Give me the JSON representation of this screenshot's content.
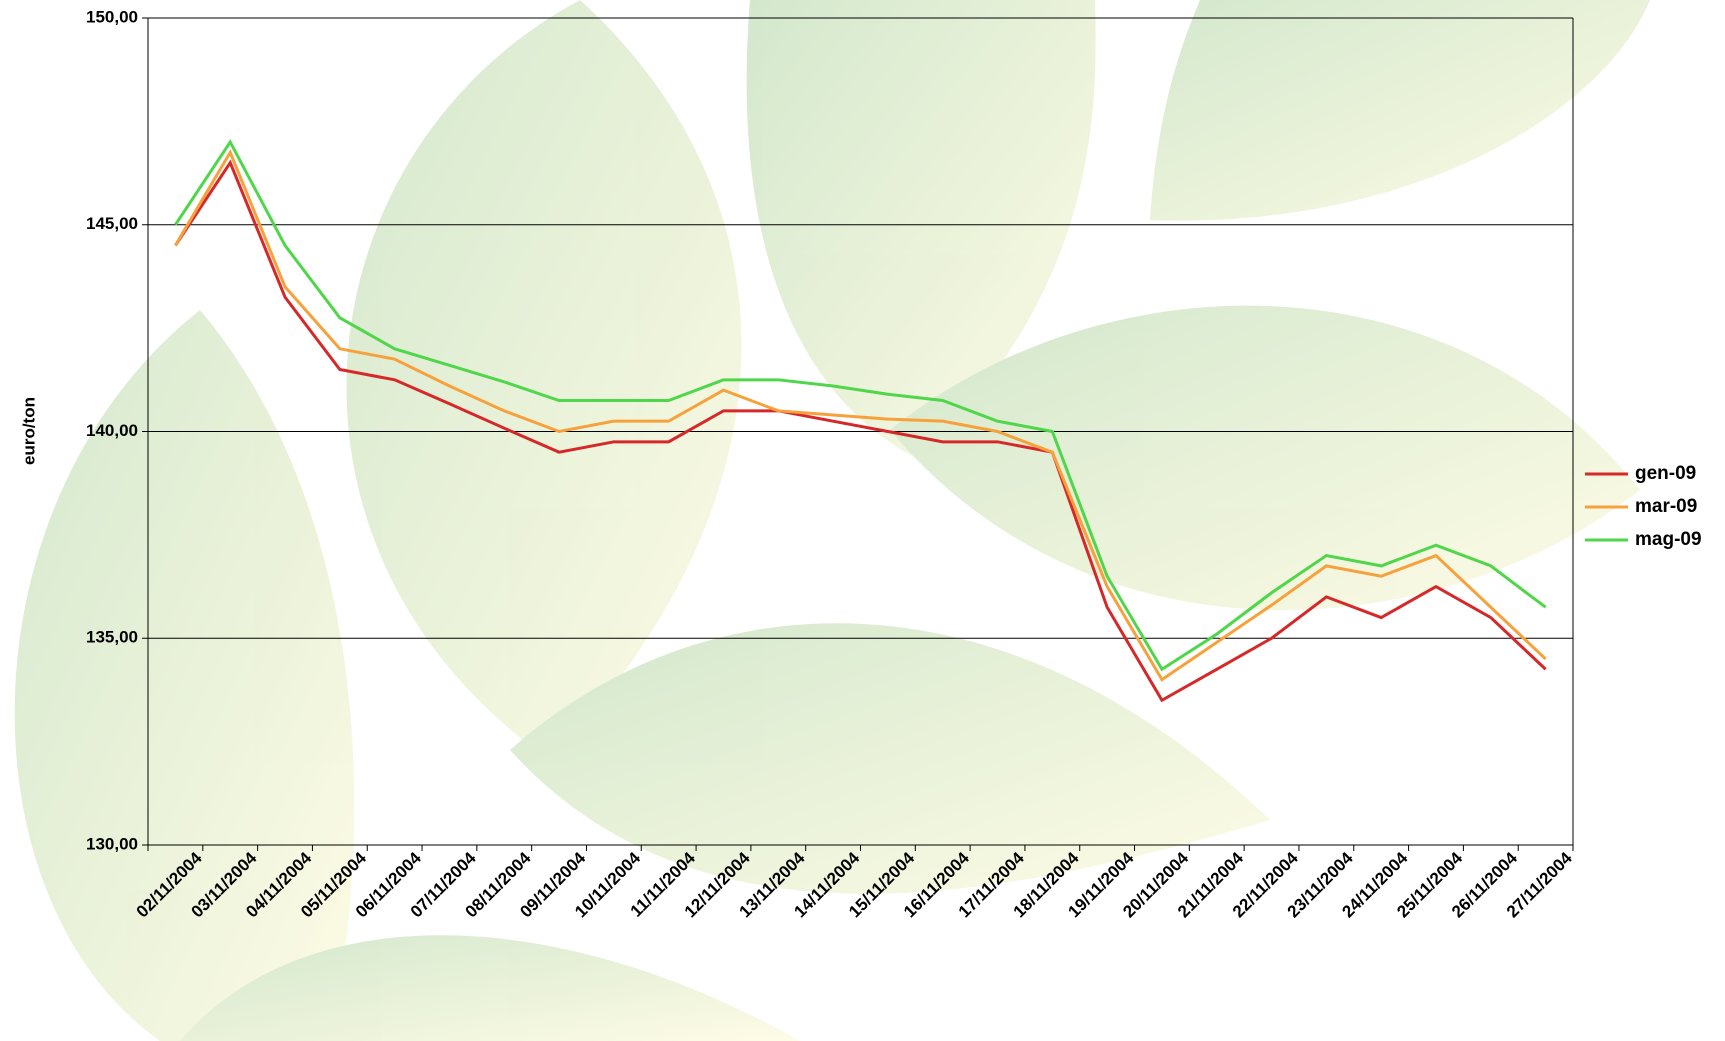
{
  "chart_data": {
    "type": "line",
    "y_label": "euro/ton",
    "categories": [
      "02/11/2004",
      "03/11/2004",
      "04/11/2004",
      "05/11/2004",
      "06/11/2004",
      "07/11/2004",
      "08/11/2004",
      "09/11/2004",
      "10/11/2004",
      "11/11/2004",
      "12/11/2004",
      "13/11/2004",
      "14/11/2004",
      "15/11/2004",
      "16/11/2004",
      "17/11/2004",
      "18/11/2004",
      "19/11/2004",
      "20/11/2004",
      "21/11/2004",
      "22/11/2004",
      "23/11/2004",
      "24/11/2004",
      "25/11/2004",
      "26/11/2004",
      "27/11/2004"
    ],
    "series": [
      {
        "name": "gen-09",
        "color": "#d62828",
        "values": [
          144.5,
          146.5,
          143.25,
          141.5,
          141.25,
          140.67,
          140.08,
          139.5,
          139.75,
          139.75,
          140.5,
          140.5,
          140.25,
          140,
          139.75,
          139.75,
          139.5,
          135.75,
          133.5,
          134.25,
          135,
          136,
          135.5,
          136.25,
          135.5,
          134.25
        ]
      },
      {
        "name": "mar-09",
        "color": "#f7a13c",
        "values": [
          144.5,
          146.75,
          143.5,
          142,
          141.75,
          141.1,
          140.5,
          140,
          140.25,
          140.25,
          141,
          140.5,
          140.4,
          140.3,
          140.25,
          140,
          139.5,
          136.25,
          134,
          134.9,
          135.8,
          136.75,
          136.5,
          137,
          135.75,
          134.5
        ]
      },
      {
        "name": "mag-09",
        "color": "#4fd64a",
        "values": [
          145,
          147,
          144.5,
          142.75,
          142,
          141.6,
          141.2,
          140.75,
          140.75,
          140.75,
          141.25,
          141.25,
          141.1,
          140.9,
          140.75,
          140.25,
          140,
          136.5,
          134.25,
          135.1,
          136.1,
          137,
          136.75,
          137.25,
          136.75,
          135.75
        ]
      }
    ],
    "ylim": [
      130,
      150
    ],
    "yticks": [
      {
        "value": 130,
        "label": "130,00"
      },
      {
        "value": 135,
        "label": "135,00"
      },
      {
        "value": 140,
        "label": "140,00"
      },
      {
        "value": 145,
        "label": "145,00"
      },
      {
        "value": 150,
        "label": "150,00"
      }
    ],
    "grid": true,
    "legend": "right"
  }
}
